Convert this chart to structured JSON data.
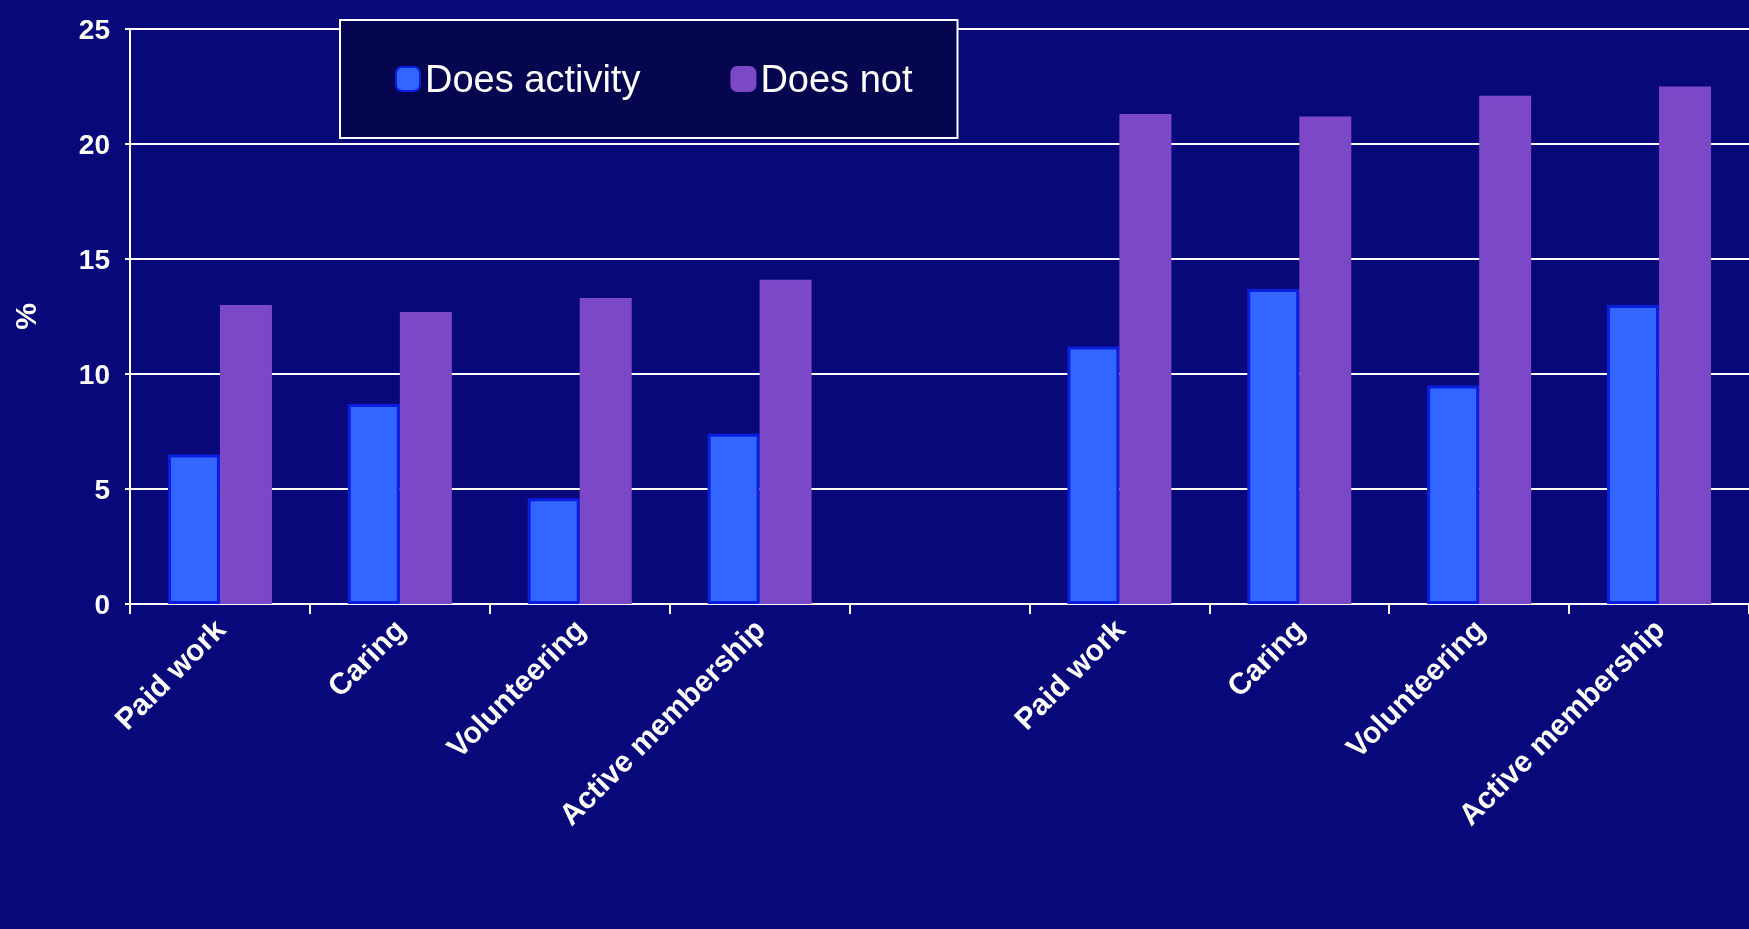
{
  "chart_data": {
    "type": "bar",
    "ylabel": "%",
    "categories": [
      "Paid work",
      "Caring",
      "Volunteering",
      "Active membership",
      null,
      "Paid work",
      "Caring",
      "Volunteering",
      "Active membership"
    ],
    "series": [
      {
        "name": "Does activity",
        "color": "#3366ff",
        "values": [
          6.5,
          8.7,
          4.6,
          7.4,
          null,
          11.2,
          13.7,
          9.5,
          13.0
        ]
      },
      {
        "name": "Does not",
        "color": "#7b48c8",
        "values": [
          13.0,
          12.7,
          13.3,
          14.1,
          null,
          21.3,
          21.2,
          22.1,
          22.5
        ]
      }
    ],
    "ylim": [
      0,
      25
    ],
    "yticks": [
      0,
      5,
      10,
      15,
      20,
      25
    ],
    "grid": "y",
    "legend": "top"
  }
}
